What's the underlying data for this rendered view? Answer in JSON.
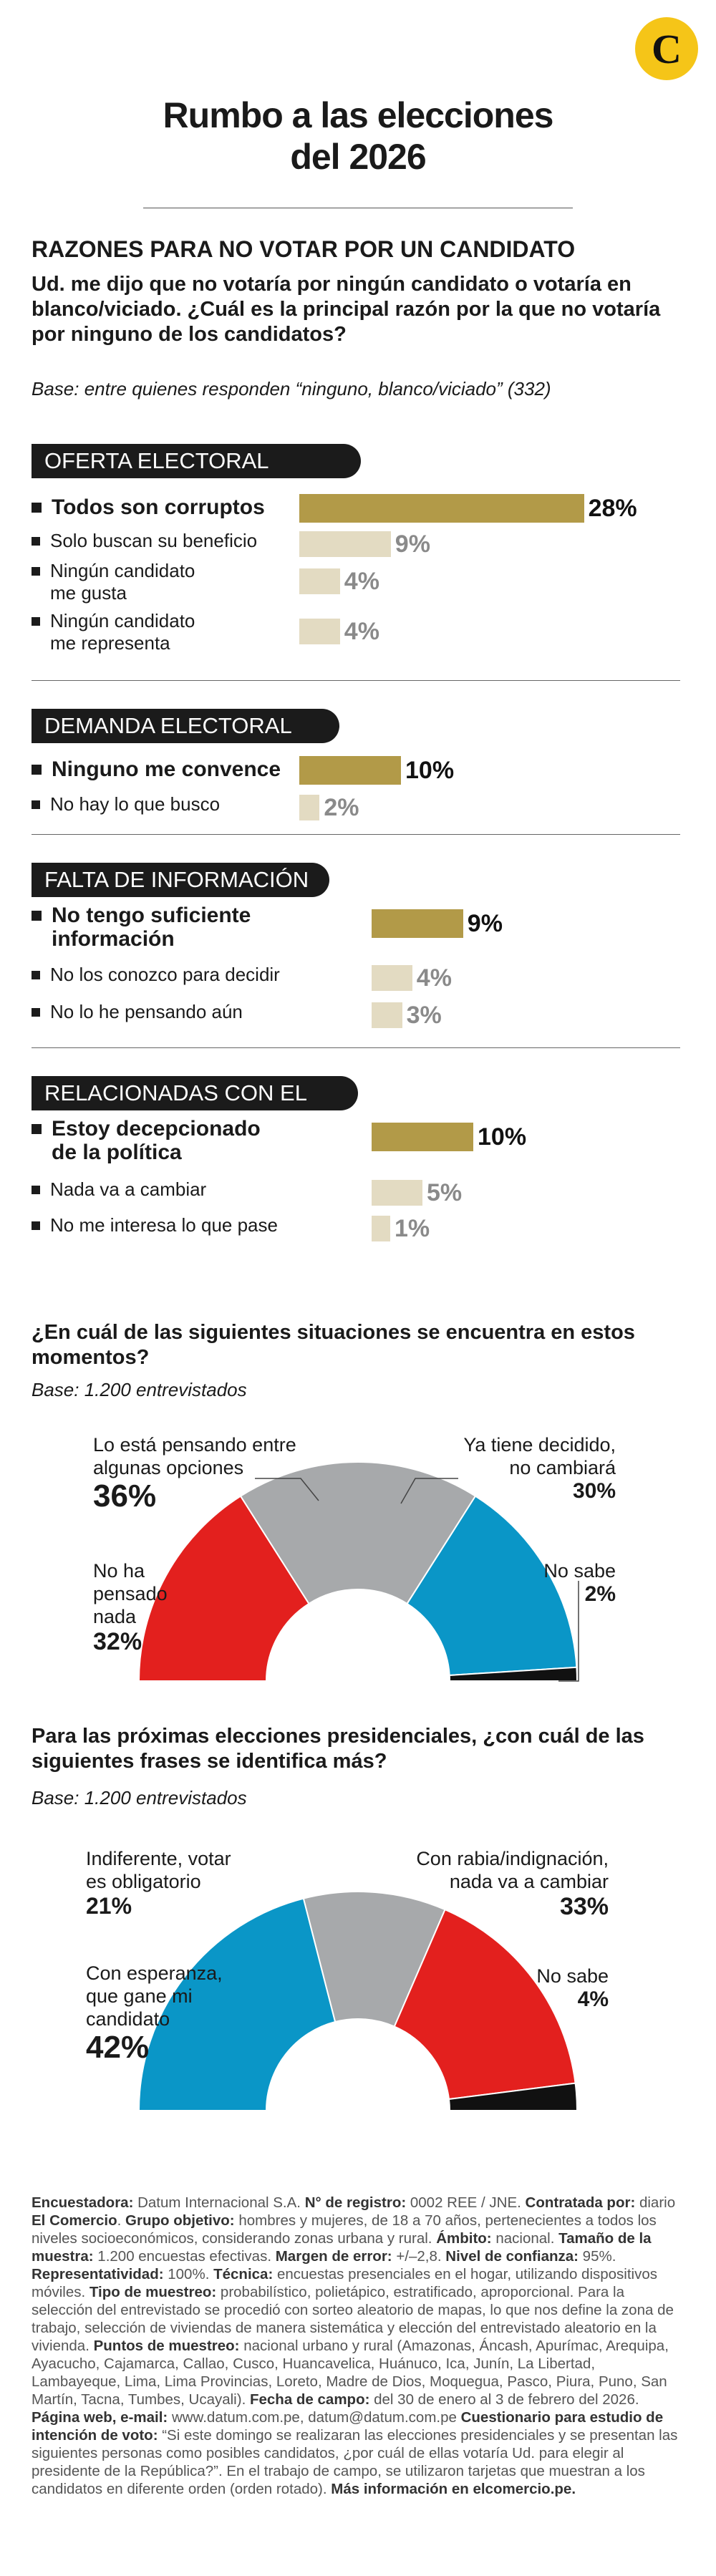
{
  "logo": {
    "letter": "C"
  },
  "title": {
    "line1": "Rumbo a las elecciones",
    "line2": "del 2026"
  },
  "section": {
    "title": "RAZONES PARA NO VOTAR POR UN CANDIDATO",
    "question": "Ud. me dijo que no votaría por ningún candidato o votaría en blanco/viciado. ¿Cuál es la principal razón por la que no votaría por ninguno de los candidatos?",
    "base": "Base: entre quienes responden “ninguno, blanco/viciado” (332)"
  },
  "colors": {
    "dark_bar": "#b29a48",
    "light_bar": "#e3dbc2",
    "red": "#e3201e",
    "gray": "#a7a9ab",
    "blue": "#0a96c7",
    "black": "#111111"
  },
  "chart_data": [
    {
      "type": "bar",
      "title": "OFERTA ELECTORAL",
      "categories": [
        "Todos son corruptos",
        "Solo buscan su beneficio",
        "Ningún candidato me gusta",
        "Ningún candidato me representa"
      ],
      "values": [
        28,
        9,
        4,
        4
      ],
      "labels": [
        "28%",
        "9%",
        "4%",
        "4%"
      ],
      "label_lines": [
        [
          "Todos son corruptos"
        ],
        [
          "Solo buscan su beneficio"
        ],
        [
          "Ningún candidato",
          "me gusta"
        ],
        [
          "Ningún candidato",
          "me representa"
        ]
      ]
    },
    {
      "type": "bar",
      "title": "DEMANDA ELECTORAL",
      "categories": [
        "Ninguno me convence",
        "No hay lo que busco"
      ],
      "values": [
        10,
        2
      ],
      "labels": [
        "10%",
        "2%"
      ],
      "label_lines": [
        [
          "Ninguno me convence"
        ],
        [
          "No hay lo que busco"
        ]
      ]
    },
    {
      "type": "bar",
      "title": "FALTA DE INFORMACIÓN",
      "categories": [
        "No tengo suficiente información",
        "No los conozco para decidir",
        "No lo he pensando aún"
      ],
      "values": [
        9,
        4,
        3
      ],
      "labels": [
        "9%",
        "4%",
        "3%"
      ],
      "label_lines": [
        [
          "No tengo suficiente",
          "información"
        ],
        [
          "No los conozco para decidir"
        ],
        [
          "No lo he pensando aún"
        ]
      ]
    },
    {
      "type": "bar",
      "title": "RELACIONADAS CON EL PAÍS",
      "categories": [
        "Estoy decepcionado de la política",
        "Nada va a cambiar",
        "No me interesa lo que pase"
      ],
      "values": [
        10,
        5,
        1
      ],
      "labels": [
        "10%",
        "5%",
        "1%"
      ],
      "label_lines": [
        [
          "Estoy decepcionado",
          "de la política"
        ],
        [
          "Nada va a cambiar"
        ],
        [
          "No me interesa lo que pase"
        ]
      ]
    },
    {
      "type": "pie",
      "title": "¿En cuál de las siguientes situaciones se encuentra en estos momentos?",
      "base": "Base: 1.200 entrevistados",
      "categories": [
        "No ha pensado nada",
        "Lo está pensando entre algunas opciones",
        "Ya tiene decidido, no cambiará",
        "No sabe"
      ],
      "values": [
        32,
        36,
        30,
        2
      ],
      "labels": [
        "32%",
        "36%",
        "30%",
        "2%"
      ],
      "label_lines": [
        [
          "No ha",
          "pensado",
          "nada"
        ],
        [
          "Lo está pensando entre",
          "algunas opciones"
        ],
        [
          "Ya tiene decidido,",
          "no cambiará"
        ],
        [
          "No sabe"
        ]
      ]
    },
    {
      "type": "pie",
      "title": "Para las próximas elecciones presidenciales, ¿con cuál de las siguientes frases se identifica más?",
      "base": "Base: 1.200 entrevistados",
      "categories": [
        "Con esperanza, que gane mi candidato",
        "Indiferente, votar es obligatorio",
        "Con rabia/indignación, nada va a cambiar",
        "No sabe"
      ],
      "values": [
        42,
        21,
        33,
        4
      ],
      "labels": [
        "42%",
        "21%",
        "33%",
        "4%"
      ],
      "label_lines": [
        [
          "Con esperanza,",
          "que gane mi",
          "candidato"
        ],
        [
          "Indiferente, votar",
          "es obligatorio"
        ],
        [
          "Con rabia/indignación,",
          "nada va a cambiar"
        ],
        [
          "No sabe"
        ]
      ]
    }
  ],
  "footnote": [
    {
      "b": true,
      "t": "Encuestadora:"
    },
    {
      "b": false,
      "t": " Datum Internacional S.A. "
    },
    {
      "b": true,
      "t": "N° de registro:"
    },
    {
      "b": false,
      "t": " 0002 REE / JNE. "
    },
    {
      "b": true,
      "t": "Contratada por:"
    },
    {
      "b": false,
      "t": " diario "
    },
    {
      "b": true,
      "t": "El Comercio"
    },
    {
      "b": false,
      "t": ". "
    },
    {
      "b": true,
      "t": "Grupo objetivo:"
    },
    {
      "b": false,
      "t": " hombres y mujeres, de 18 a 70 años, pertenecientes a todos los niveles socioeconómicos, considerando zonas urbana y rural. "
    },
    {
      "b": true,
      "t": "Ámbito:"
    },
    {
      "b": false,
      "t": " nacional. "
    },
    {
      "b": true,
      "t": "Tamaño de la muestra:"
    },
    {
      "b": false,
      "t": " 1.200 encuestas efectivas. "
    },
    {
      "b": true,
      "t": "Margen de error:"
    },
    {
      "b": false,
      "t": " +/–2,8. "
    },
    {
      "b": true,
      "t": "Nivel de confianza:"
    },
    {
      "b": false,
      "t": " 95%. "
    },
    {
      "b": true,
      "t": "Representatividad:"
    },
    {
      "b": false,
      "t": " 100%. "
    },
    {
      "b": true,
      "t": "Técnica:"
    },
    {
      "b": false,
      "t": " encuestas presenciales en el hogar, utilizando dispositivos móviles. "
    },
    {
      "b": true,
      "t": "Tipo de muestreo:"
    },
    {
      "b": false,
      "t": " probabilístico, polietápico, estratificado, aproporcional. Para la selección del entrevistado se procedió con sorteo aleatorio de mapas, lo que nos define la zona de trabajo, selección de viviendas de manera sistemática y elección del entrevistado aleatorio en la vivienda. "
    },
    {
      "b": true,
      "t": "Puntos de muestreo:"
    },
    {
      "b": false,
      "t": " nacional urbano y rural (Amazonas, Áncash, Apurímac, Arequipa, Ayacucho, Cajamarca, Callao, Cusco, Huancavelica, Huánuco, Ica, Junín, La Libertad, Lambayeque, Lima, Lima Provincias, Loreto, Madre de Dios, Moquegua, Pasco, Piura, Puno, San Martín, Tacna, Tumbes, Ucayali). "
    },
    {
      "b": true,
      "t": "Fecha de campo:"
    },
    {
      "b": false,
      "t": " del 30 de enero al 3 de febrero del 2026. "
    },
    {
      "b": true,
      "t": "Página web, e-mail:"
    },
    {
      "b": false,
      "t": " www.datum.com.pe, datum@datum.com.pe "
    },
    {
      "b": true,
      "t": "Cuestionario para estudio de intención de voto:"
    },
    {
      "b": false,
      "t": " “Si este domingo se realizaran las elecciones presidenciales y se presentan las siguientes personas como posibles candidatos, ¿por cuál de ellas votaría Ud. para elegir al presidente de la República?”. En el trabajo de campo, se utilizaron tarjetas que muestran a los candidatos en diferente orden (orden rotado). "
    },
    {
      "b": true,
      "t": "Más información en elcomercio.pe."
    }
  ]
}
